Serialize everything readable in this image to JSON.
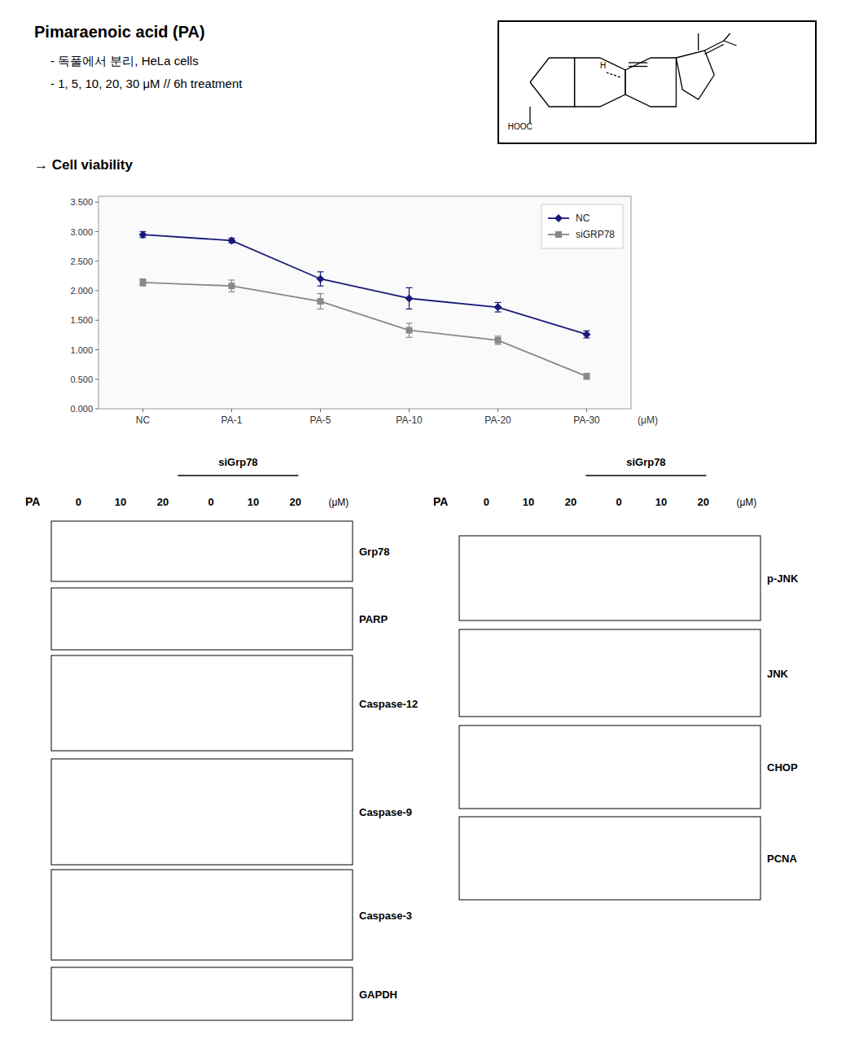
{
  "chart_data": {
    "type": "line",
    "title": "Pimaraenoic acid (PA)",
    "xlabel": "(μM)",
    "categories": [
      "NC",
      "PA-1",
      "PA-5",
      "PA-10",
      "PA-20",
      "PA-30"
    ],
    "series": [
      {
        "name": "NC",
        "color": "#1a1a7a",
        "marker": "diamond",
        "values": [
          2.95,
          2.85,
          2.2,
          1.87,
          1.72,
          1.26
        ],
        "errors": [
          0.05,
          0.04,
          0.12,
          0.18,
          0.08,
          0.06
        ]
      },
      {
        "name": "siGRP78",
        "color": "#888888",
        "marker": "square",
        "values": [
          2.14,
          2.08,
          1.82,
          1.33,
          1.16,
          0.55
        ],
        "errors": [
          0.06,
          0.1,
          0.13,
          0.12,
          0.07,
          0.05
        ]
      }
    ],
    "ylim": [
      0,
      3.6
    ],
    "yticks": [
      {
        "value": 0,
        "label": "0.000"
      },
      {
        "value": 0.5,
        "label": "0.500"
      },
      {
        "value": 1,
        "label": "1.000"
      },
      {
        "value": 1.5,
        "label": "1.500"
      },
      {
        "value": 2,
        "label": "2.000"
      },
      {
        "value": 2.5,
        "label": "2.500"
      },
      {
        "value": 3,
        "label": "3.000"
      },
      {
        "value": 3.5,
        "label": "3.500"
      }
    ],
    "grid": false,
    "legend": "upper right",
    "annotations": {
      "notes": [
        "- 독풀에서 분리, HeLa cells",
        "- 1, 5, 10, 20, 30 μM  //  6h treatment"
      ],
      "cell_viability": "→ Cell viability",
      "structure": [
        "H",
        "HOOC"
      ],
      "blot_header": "siGrp78",
      "treatment": "PA",
      "doses": [
        0,
        10,
        20,
        0,
        10,
        20
      ],
      "dose_unit": "(μM)",
      "blots_left": [
        "Grp78",
        "PARP",
        "Caspase-12",
        "Caspase-9",
        "Caspase-3",
        "GAPDH"
      ],
      "blots_right": [
        "p-JNK",
        "JNK",
        "CHOP",
        "PCNA"
      ]
    }
  }
}
